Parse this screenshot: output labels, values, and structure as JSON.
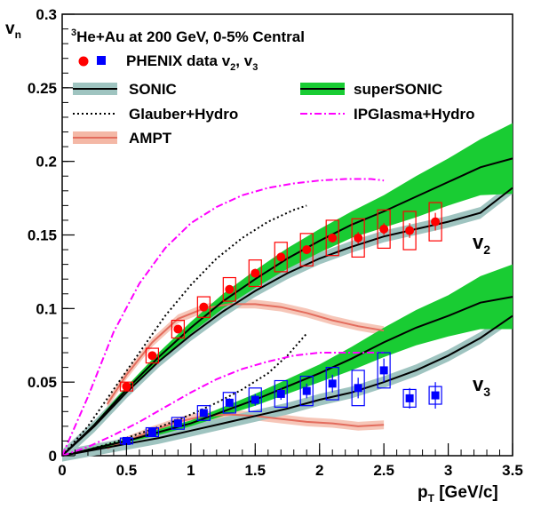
{
  "chart_data": {
    "type": "line",
    "title": "3He+Au at 200 GeV, 0-5% Central",
    "title_parts": {
      "superscript": "3",
      "main": "He+Au at 200 GeV, 0-5% Central"
    },
    "xlabel": "pT [GeV/c]",
    "xlabel_parts": {
      "main": "p",
      "subscript": "T",
      "suffix": " [GeV/c]"
    },
    "ylabel": "vn",
    "ylabel_parts": {
      "main": "v",
      "subscript": "n"
    },
    "xlim": [
      0,
      3.5
    ],
    "ylim": [
      0,
      0.3
    ],
    "x_ticks": [
      {
        "value": 0,
        "label": "0"
      },
      {
        "value": 0.5,
        "label": "0.5"
      },
      {
        "value": 1,
        "label": "1"
      },
      {
        "value": 1.5,
        "label": "1.5"
      },
      {
        "value": 2,
        "label": "2"
      },
      {
        "value": 2.5,
        "label": "2.5"
      },
      {
        "value": 3,
        "label": "3"
      },
      {
        "value": 3.5,
        "label": "3.5"
      }
    ],
    "y_ticks": [
      {
        "value": 0,
        "label": "0"
      },
      {
        "value": 0.05,
        "label": "0.05"
      },
      {
        "value": 0.1,
        "label": "0.1"
      },
      {
        "value": 0.15,
        "label": "0.15"
      },
      {
        "value": 0.2,
        "label": "0.2"
      },
      {
        "value": 0.25,
        "label": "0.25"
      },
      {
        "value": 0.3,
        "label": "0.3"
      }
    ],
    "annotations": {
      "v2": {
        "main": "v",
        "subscript": "2",
        "x": 3.12,
        "y": 0.142
      },
      "v3": {
        "main": "v",
        "subscript": "3",
        "x": 3.12,
        "y": 0.045
      }
    },
    "legend": [
      {
        "label": "PHENIX data v2, v3",
        "parts": {
          "a": "PHENIX data v",
          "sub1": "2",
          "b": ", v",
          "sub2": "3"
        },
        "kind": "markers"
      },
      {
        "label": "SONIC",
        "kind": "band-line"
      },
      {
        "label": "superSONIC",
        "kind": "green-band-line"
      },
      {
        "label": "Glauber+Hydro",
        "kind": "dotted"
      },
      {
        "label": "IPGlasma+Hydro",
        "kind": "dashdot"
      },
      {
        "label": "AMPT",
        "kind": "ampt-band"
      }
    ],
    "series": {
      "phenix_v2": {
        "name": "PHENIX data v2",
        "color": "#ff0000",
        "x": [
          0.5,
          0.7,
          0.9,
          1.1,
          1.3,
          1.5,
          1.7,
          1.9,
          2.1,
          2.3,
          2.5,
          2.7,
          2.9
        ],
        "y": [
          0.047,
          0.068,
          0.086,
          0.101,
          0.113,
          0.124,
          0.135,
          0.14,
          0.148,
          0.148,
          0.154,
          0.153,
          0.159
        ],
        "syst": [
          0.003,
          0.005,
          0.006,
          0.007,
          0.008,
          0.009,
          0.01,
          0.011,
          0.012,
          0.013,
          0.013,
          0.013,
          0.013
        ],
        "stat": [
          0.001,
          0.001,
          0.002,
          0.002,
          0.002,
          0.003,
          0.003,
          0.003,
          0.003,
          0.004,
          0.004,
          0.005,
          0.006
        ]
      },
      "phenix_v3": {
        "name": "PHENIX data v3",
        "color": "#0000ff",
        "x": [
          0.5,
          0.7,
          0.9,
          1.1,
          1.3,
          1.5,
          1.7,
          1.9,
          2.1,
          2.3,
          2.5,
          2.7,
          2.9
        ],
        "y": [
          0.01,
          0.016,
          0.022,
          0.029,
          0.036,
          0.038,
          0.042,
          0.044,
          0.049,
          0.046,
          0.058,
          0.039,
          0.041
        ],
        "syst": [
          0.002,
          0.003,
          0.004,
          0.005,
          0.007,
          0.008,
          0.009,
          0.01,
          0.011,
          0.012,
          0.012,
          0.006,
          0.006
        ],
        "stat": [
          0.001,
          0.001,
          0.002,
          0.002,
          0.003,
          0.004,
          0.004,
          0.005,
          0.006,
          0.007,
          0.008,
          0.007,
          0.009
        ]
      },
      "sonic_v2": {
        "name": "SONIC v2",
        "x": [
          0.0,
          0.25,
          0.5,
          0.75,
          1.0,
          1.25,
          1.5,
          1.75,
          2.0,
          2.25,
          2.5,
          2.75,
          3.0,
          3.25,
          3.5
        ],
        "y": [
          0.0,
          0.02,
          0.043,
          0.064,
          0.082,
          0.098,
          0.112,
          0.124,
          0.134,
          0.142,
          0.149,
          0.154,
          0.159,
          0.165,
          0.182
        ],
        "band": 0.004
      },
      "sonic_v3": {
        "name": "SONIC v3",
        "x": [
          0.0,
          0.25,
          0.5,
          0.75,
          1.0,
          1.25,
          1.5,
          1.75,
          2.0,
          2.25,
          2.5,
          2.75,
          3.0,
          3.25,
          3.5
        ],
        "y": [
          0.0,
          0.004,
          0.008,
          0.012,
          0.017,
          0.022,
          0.027,
          0.032,
          0.038,
          0.043,
          0.05,
          0.058,
          0.068,
          0.08,
          0.095
        ],
        "band": 0.004
      },
      "supersonic_v2": {
        "name": "superSONIC v2",
        "x": [
          0.0,
          0.25,
          0.5,
          0.75,
          1.0,
          1.25,
          1.5,
          1.75,
          2.0,
          2.25,
          2.5,
          2.75,
          3.0,
          3.25,
          3.5
        ],
        "y": [
          0.0,
          0.021,
          0.045,
          0.067,
          0.087,
          0.105,
          0.12,
          0.134,
          0.146,
          0.157,
          0.166,
          0.176,
          0.186,
          0.196,
          0.202
        ],
        "band": [
          0.0,
          0.001,
          0.002,
          0.003,
          0.004,
          0.005,
          0.006,
          0.007,
          0.008,
          0.009,
          0.011,
          0.014,
          0.016,
          0.019,
          0.024
        ]
      },
      "supersonic_v3": {
        "name": "superSONIC v3",
        "x": [
          0.0,
          0.25,
          0.5,
          0.75,
          1.0,
          1.25,
          1.5,
          1.75,
          2.0,
          2.25,
          2.5,
          2.75,
          3.0,
          3.25,
          3.5
        ],
        "y": [
          0.0,
          0.005,
          0.01,
          0.016,
          0.022,
          0.03,
          0.038,
          0.047,
          0.056,
          0.066,
          0.077,
          0.087,
          0.095,
          0.104,
          0.108
        ],
        "band": [
          0.0,
          0.001,
          0.001,
          0.002,
          0.002,
          0.003,
          0.004,
          0.005,
          0.006,
          0.008,
          0.01,
          0.012,
          0.014,
          0.018,
          0.022
        ]
      },
      "glauber_v2": {
        "name": "Glauber+Hydro v2",
        "x": [
          0.0,
          0.2,
          0.4,
          0.6,
          0.8,
          1.0,
          1.2,
          1.4,
          1.6,
          1.8,
          1.9
        ],
        "y": [
          0.0,
          0.02,
          0.045,
          0.07,
          0.095,
          0.116,
          0.134,
          0.148,
          0.159,
          0.167,
          0.17
        ]
      },
      "glauber_v3": {
        "name": "Glauber+Hydro v3",
        "x": [
          0.0,
          0.2,
          0.4,
          0.6,
          0.8,
          1.0,
          1.2,
          1.4,
          1.6,
          1.75,
          1.9
        ],
        "y": [
          0.0,
          0.004,
          0.009,
          0.015,
          0.021,
          0.028,
          0.036,
          0.045,
          0.056,
          0.068,
          0.083
        ]
      },
      "ipglasma_v2": {
        "name": "IPGlasma+Hydro v2",
        "x": [
          0.0,
          0.2,
          0.4,
          0.6,
          0.8,
          1.0,
          1.2,
          1.4,
          1.6,
          1.8,
          2.0,
          2.2,
          2.4,
          2.5
        ],
        "y": [
          0.0,
          0.04,
          0.084,
          0.117,
          0.141,
          0.158,
          0.169,
          0.177,
          0.182,
          0.185,
          0.187,
          0.188,
          0.188,
          0.187
        ]
      },
      "ipglasma_v3": {
        "name": "IPGlasma+Hydro v3",
        "x": [
          0.0,
          0.2,
          0.4,
          0.6,
          0.8,
          1.0,
          1.2,
          1.4,
          1.6,
          1.8,
          2.0,
          2.2,
          2.4,
          2.5
        ],
        "y": [
          0.0,
          0.006,
          0.014,
          0.023,
          0.033,
          0.043,
          0.052,
          0.059,
          0.064,
          0.068,
          0.07,
          0.07,
          0.07,
          0.07
        ]
      },
      "ampt_v2": {
        "name": "AMPT v2",
        "x": [
          0.35,
          0.5,
          0.7,
          0.9,
          1.1,
          1.3,
          1.5,
          1.7,
          1.9,
          2.1,
          2.3,
          2.5
        ],
        "y": [
          0.035,
          0.055,
          0.077,
          0.093,
          0.1,
          0.103,
          0.103,
          0.101,
          0.097,
          0.092,
          0.088,
          0.085
        ],
        "band": 0.003
      },
      "ampt_v3": {
        "name": "AMPT v3",
        "x": [
          0.35,
          0.5,
          0.7,
          0.9,
          1.1,
          1.3,
          1.5,
          1.7,
          1.9,
          2.1,
          2.3,
          2.5
        ],
        "y": [
          0.005,
          0.01,
          0.017,
          0.023,
          0.027,
          0.028,
          0.027,
          0.025,
          0.023,
          0.022,
          0.02,
          0.021
        ],
        "band": 0.003
      }
    }
  },
  "colors": {
    "sonic_band": "#9fc4c0",
    "supersonic_band": "#19cc33",
    "ampt_line": "#e36c5d",
    "ampt_band": "#f4b8a6",
    "ipglasma": "#ff00ff",
    "phenix_v2": "#ff0000",
    "phenix_v3": "#0000ff"
  }
}
